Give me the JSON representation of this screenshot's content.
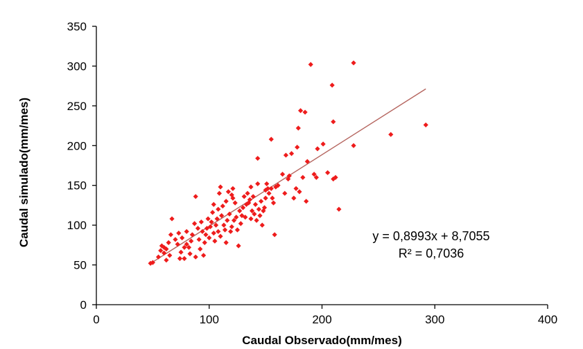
{
  "chart_data": {
    "type": "scatter",
    "title": "",
    "xlabel": "Caudal Observado(mm/mes)",
    "ylabel": "Caudal simulado(mm/mes)",
    "xlim": [
      0,
      400
    ],
    "ylim": [
      0,
      350
    ],
    "xticks": [
      "0",
      "100",
      "200",
      "300",
      "400"
    ],
    "yticks": [
      "0",
      "50",
      "100",
      "150",
      "200",
      "250",
      "300",
      "350"
    ],
    "grid": false,
    "legend": "none",
    "point_color": "#ee1c1c",
    "trend_color": "#b5655f",
    "trendline": {
      "slope": 0.8993,
      "intercept": 8.7055,
      "x_range": [
        48,
        292
      ]
    },
    "equation_text": "y = 0,8993x + 8,7055",
    "r2_text": "R² = 0,7036",
    "points": [
      [
        48,
        52
      ],
      [
        50,
        53
      ],
      [
        55,
        60
      ],
      [
        57,
        68
      ],
      [
        58,
        74
      ],
      [
        60,
        72
      ],
      [
        60,
        65
      ],
      [
        62,
        70
      ],
      [
        64,
        78
      ],
      [
        65,
        62
      ],
      [
        62,
        56
      ],
      [
        66,
        88
      ],
      [
        67,
        108
      ],
      [
        70,
        82
      ],
      [
        72,
        76
      ],
      [
        73,
        90
      ],
      [
        74,
        58
      ],
      [
        75,
        66
      ],
      [
        76,
        84
      ],
      [
        78,
        72
      ],
      [
        78,
        58
      ],
      [
        80,
        76
      ],
      [
        80,
        92
      ],
      [
        82,
        72
      ],
      [
        83,
        64
      ],
      [
        84,
        80
      ],
      [
        85,
        88
      ],
      [
        87,
        102
      ],
      [
        88,
        136
      ],
      [
        88,
        60
      ],
      [
        90,
        96
      ],
      [
        91,
        82
      ],
      [
        92,
        70
      ],
      [
        93,
        104
      ],
      [
        94,
        92
      ],
      [
        95,
        62
      ],
      [
        96,
        78
      ],
      [
        97,
        88
      ],
      [
        98,
        96
      ],
      [
        99,
        108
      ],
      [
        100,
        84
      ],
      [
        101,
        98
      ],
      [
        102,
        104
      ],
      [
        103,
        116
      ],
      [
        104,
        90
      ],
      [
        104,
        126
      ],
      [
        105,
        80
      ],
      [
        106,
        100
      ],
      [
        107,
        108
      ],
      [
        108,
        120
      ],
      [
        108,
        92
      ],
      [
        109,
        140
      ],
      [
        110,
        148
      ],
      [
        110,
        86
      ],
      [
        111,
        112
      ],
      [
        112,
        124
      ],
      [
        113,
        100
      ],
      [
        114,
        94
      ],
      [
        115,
        130
      ],
      [
        115,
        78
      ],
      [
        116,
        106
      ],
      [
        117,
        142
      ],
      [
        118,
        114
      ],
      [
        119,
        92
      ],
      [
        120,
        98
      ],
      [
        120,
        138
      ],
      [
        121,
        146
      ],
      [
        121,
        134
      ],
      [
        122,
        106
      ],
      [
        123,
        128
      ],
      [
        124,
        110
      ],
      [
        125,
        94
      ],
      [
        126,
        74
      ],
      [
        127,
        118
      ],
      [
        128,
        102
      ],
      [
        129,
        112
      ],
      [
        130,
        122
      ],
      [
        131,
        136
      ],
      [
        132,
        110
      ],
      [
        133,
        126
      ],
      [
        134,
        140
      ],
      [
        135,
        128
      ],
      [
        136,
        132
      ],
      [
        137,
        108
      ],
      [
        137,
        148
      ],
      [
        138,
        118
      ],
      [
        139,
        136
      ],
      [
        140,
        114
      ],
      [
        141,
        126
      ],
      [
        142,
        106
      ],
      [
        143,
        152
      ],
      [
        143,
        184
      ],
      [
        144,
        120
      ],
      [
        145,
        112
      ],
      [
        146,
        130
      ],
      [
        147,
        100
      ],
      [
        148,
        118
      ],
      [
        149,
        122
      ],
      [
        150,
        134
      ],
      [
        150,
        144
      ],
      [
        151,
        152
      ],
      [
        152,
        146
      ],
      [
        153,
        140
      ],
      [
        155,
        146
      ],
      [
        155,
        208
      ],
      [
        156,
        134
      ],
      [
        157,
        128
      ],
      [
        158,
        88
      ],
      [
        159,
        148
      ],
      [
        161,
        150
      ],
      [
        165,
        164
      ],
      [
        167,
        140
      ],
      [
        168,
        188
      ],
      [
        170,
        158
      ],
      [
        171,
        162
      ],
      [
        173,
        190
      ],
      [
        175,
        134
      ],
      [
        177,
        146
      ],
      [
        178,
        198
      ],
      [
        179,
        222
      ],
      [
        180,
        142
      ],
      [
        181,
        244
      ],
      [
        183,
        160
      ],
      [
        185,
        242
      ],
      [
        186,
        130
      ],
      [
        187,
        180
      ],
      [
        190,
        302
      ],
      [
        193,
        164
      ],
      [
        195,
        160
      ],
      [
        196,
        196
      ],
      [
        201,
        202
      ],
      [
        205,
        166
      ],
      [
        209,
        276
      ],
      [
        210,
        230
      ],
      [
        210,
        158
      ],
      [
        212,
        160
      ],
      [
        215,
        120
      ],
      [
        228,
        304
      ],
      [
        228,
        200
      ],
      [
        261,
        214
      ],
      [
        292,
        226
      ]
    ]
  }
}
